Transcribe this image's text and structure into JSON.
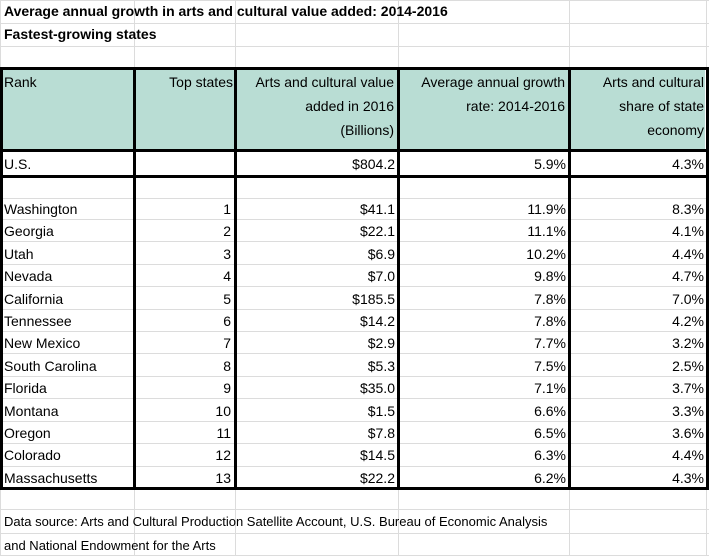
{
  "title": "Average annual growth in arts and cultural value added: 2014-2016",
  "subtitle": "Fastest-growing states",
  "headers": {
    "rank": "Rank",
    "top_states": "Top states",
    "value_line1": "Arts and cultural value",
    "value_line2": "added in 2016",
    "value_line3": "(Billions)",
    "growth_line1": "Average annual growth",
    "growth_line2": "rate: 2014-2016",
    "share_line1": "Arts and cultural",
    "share_line2": "share of state",
    "share_line3": "economy"
  },
  "us_row": {
    "name": "U.S.",
    "rank": "",
    "value": "$804.2",
    "growth": "5.9%",
    "share": "4.3%"
  },
  "rows": [
    {
      "name": "Washington",
      "rank": "1",
      "value": "$41.1",
      "growth": "11.9%",
      "share": "8.3%"
    },
    {
      "name": "Georgia",
      "rank": "2",
      "value": "$22.1",
      "growth": "11.1%",
      "share": "4.1%"
    },
    {
      "name": "Utah",
      "rank": "3",
      "value": "$6.9",
      "growth": "10.2%",
      "share": "4.4%"
    },
    {
      "name": "Nevada",
      "rank": "4",
      "value": "$7.0",
      "growth": "9.8%",
      "share": "4.7%"
    },
    {
      "name": "California",
      "rank": "5",
      "value": "$185.5",
      "growth": "7.8%",
      "share": "7.0%"
    },
    {
      "name": "Tennessee",
      "rank": "6",
      "value": "$14.2",
      "growth": "7.8%",
      "share": "4.2%"
    },
    {
      "name": "New Mexico",
      "rank": "7",
      "value": "$2.9",
      "growth": "7.7%",
      "share": "3.2%"
    },
    {
      "name": "South Carolina",
      "rank": "8",
      "value": "$5.3",
      "growth": "7.5%",
      "share": "2.5%"
    },
    {
      "name": "Florida",
      "rank": "9",
      "value": "$35.0",
      "growth": "7.1%",
      "share": "3.7%"
    },
    {
      "name": "Montana",
      "rank": "10",
      "value": "$1.5",
      "growth": "6.6%",
      "share": "3.3%"
    },
    {
      "name": "Oregon",
      "rank": "11",
      "value": "$7.8",
      "growth": "6.5%",
      "share": "3.6%"
    },
    {
      "name": "Colorado",
      "rank": "12",
      "value": "$14.5",
      "growth": "6.3%",
      "share": "4.4%"
    },
    {
      "name": "Massachusetts",
      "rank": "13",
      "value": "$22.2",
      "growth": "6.2%",
      "share": "4.3%"
    }
  ],
  "source_line1": "Data source: Arts and Cultural Production Satellite Account, U.S. Bureau of Economic Analysis",
  "source_line2": "and National Endowment for the Arts",
  "colors": {
    "header_fill": "#b9ddd4",
    "gridline": "#dcdcdc",
    "border": "#000000"
  }
}
